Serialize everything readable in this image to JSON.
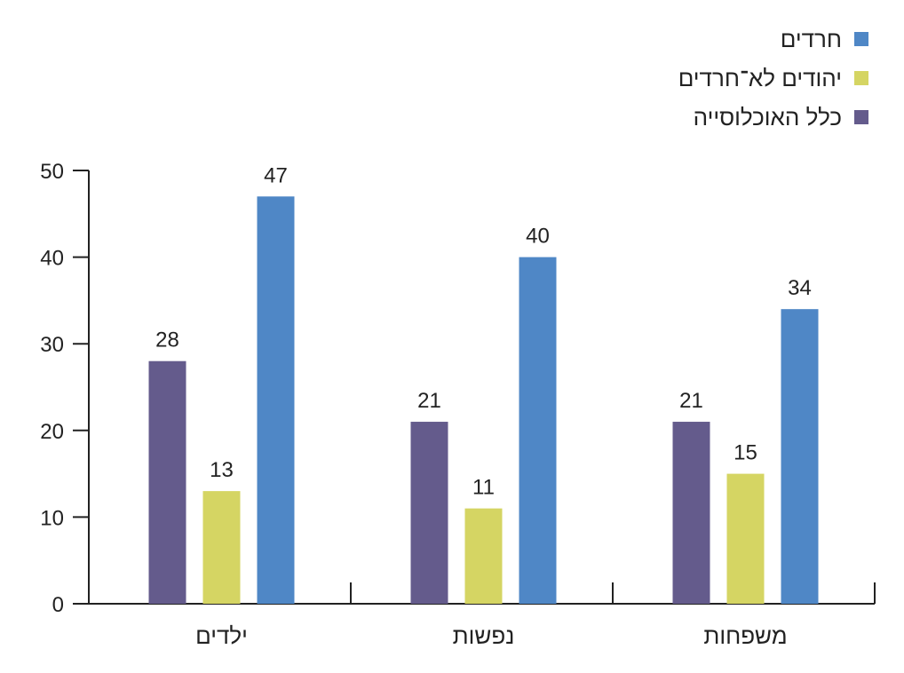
{
  "chart_data": {
    "type": "bar",
    "title": "",
    "xlabel": "",
    "ylabel": "",
    "ylim": [
      0,
      50
    ],
    "yticks": [
      0,
      10,
      20,
      30,
      40,
      50
    ],
    "grid": false,
    "legend_position": "top-right",
    "categories": [
      "ילדים",
      "נפשות",
      "משפחות"
    ],
    "series": [
      {
        "name": "כלל האוכלוסייה",
        "color": "#645b8c",
        "values": [
          28,
          21,
          21
        ]
      },
      {
        "name": "יהודים לא־חרדים",
        "color": "#d5d563",
        "values": [
          13,
          11,
          15
        ]
      },
      {
        "name": "חרדים",
        "color": "#4f87c6",
        "values": [
          47,
          40,
          34
        ]
      }
    ],
    "legend_order": [
      2,
      1,
      0
    ]
  }
}
